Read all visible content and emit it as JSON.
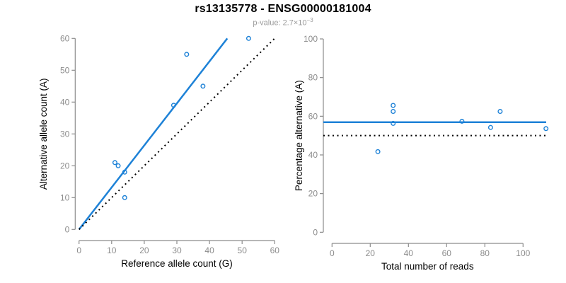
{
  "header": {
    "title": "rs13135778 - ENSG00000181004",
    "pvalue_label": "p-value: ",
    "pvalue_base": "2.7×10",
    "pvalue_exponent": "−3"
  },
  "colors": {
    "accent_blue": "#1e82d7",
    "identity_black": "#000000",
    "axis_gray": "#8c8c8c",
    "axis_title_black": "#000000",
    "subtitle_gray": "#9a9a9a"
  },
  "chart_data": [
    {
      "type": "scatter",
      "title": "rs13135778 - ENSG00000181004",
      "subtitle": "p-value: 2.7×10^−3",
      "xlabel": "Reference allele count (G)",
      "ylabel": "Alternative allele count (A)",
      "xlim": [
        0,
        60
      ],
      "ylim": [
        0,
        60
      ],
      "xticks": [
        0,
        10,
        20,
        30,
        40,
        50,
        60
      ],
      "yticks": [
        0,
        10,
        20,
        30,
        40,
        50,
        60
      ],
      "grid": false,
      "legend": "none",
      "points": [
        [
          11,
          21
        ],
        [
          12,
          20
        ],
        [
          14,
          18
        ],
        [
          14,
          10
        ],
        [
          29,
          39
        ],
        [
          33,
          55
        ],
        [
          38,
          45
        ],
        [
          52,
          60
        ]
      ],
      "lines": [
        {
          "name": "fitted-line",
          "slope": 1.32,
          "intercept": 0,
          "style": "solid",
          "color": "#1e82d7"
        },
        {
          "name": "identity-line",
          "slope": 1,
          "intercept": 0,
          "style": "dotted",
          "color": "#000000"
        }
      ]
    },
    {
      "type": "scatter",
      "xlabel": "Total number of reads",
      "ylabel": "Percentage alternative (A)",
      "xlim": [
        0,
        113
      ],
      "ylim": [
        0,
        100
      ],
      "xticks": [
        0,
        20,
        40,
        60,
        80,
        100
      ],
      "yticks": [
        0,
        20,
        40,
        60,
        80,
        100
      ],
      "grid": false,
      "legend": "none",
      "points": [
        [
          32,
          65.6
        ],
        [
          32,
          62.5
        ],
        [
          32,
          56.3
        ],
        [
          24,
          41.7
        ],
        [
          68,
          57.4
        ],
        [
          83,
          54.2
        ],
        [
          88,
          62.5
        ],
        [
          112,
          53.6
        ]
      ],
      "lines": [
        {
          "name": "mean-percentage-line",
          "slope": 0,
          "intercept": 56.9,
          "style": "solid",
          "color": "#1e82d7"
        },
        {
          "name": "fifty-percent-line",
          "slope": 0,
          "intercept": 50,
          "style": "dotted",
          "color": "#000000"
        }
      ]
    }
  ]
}
